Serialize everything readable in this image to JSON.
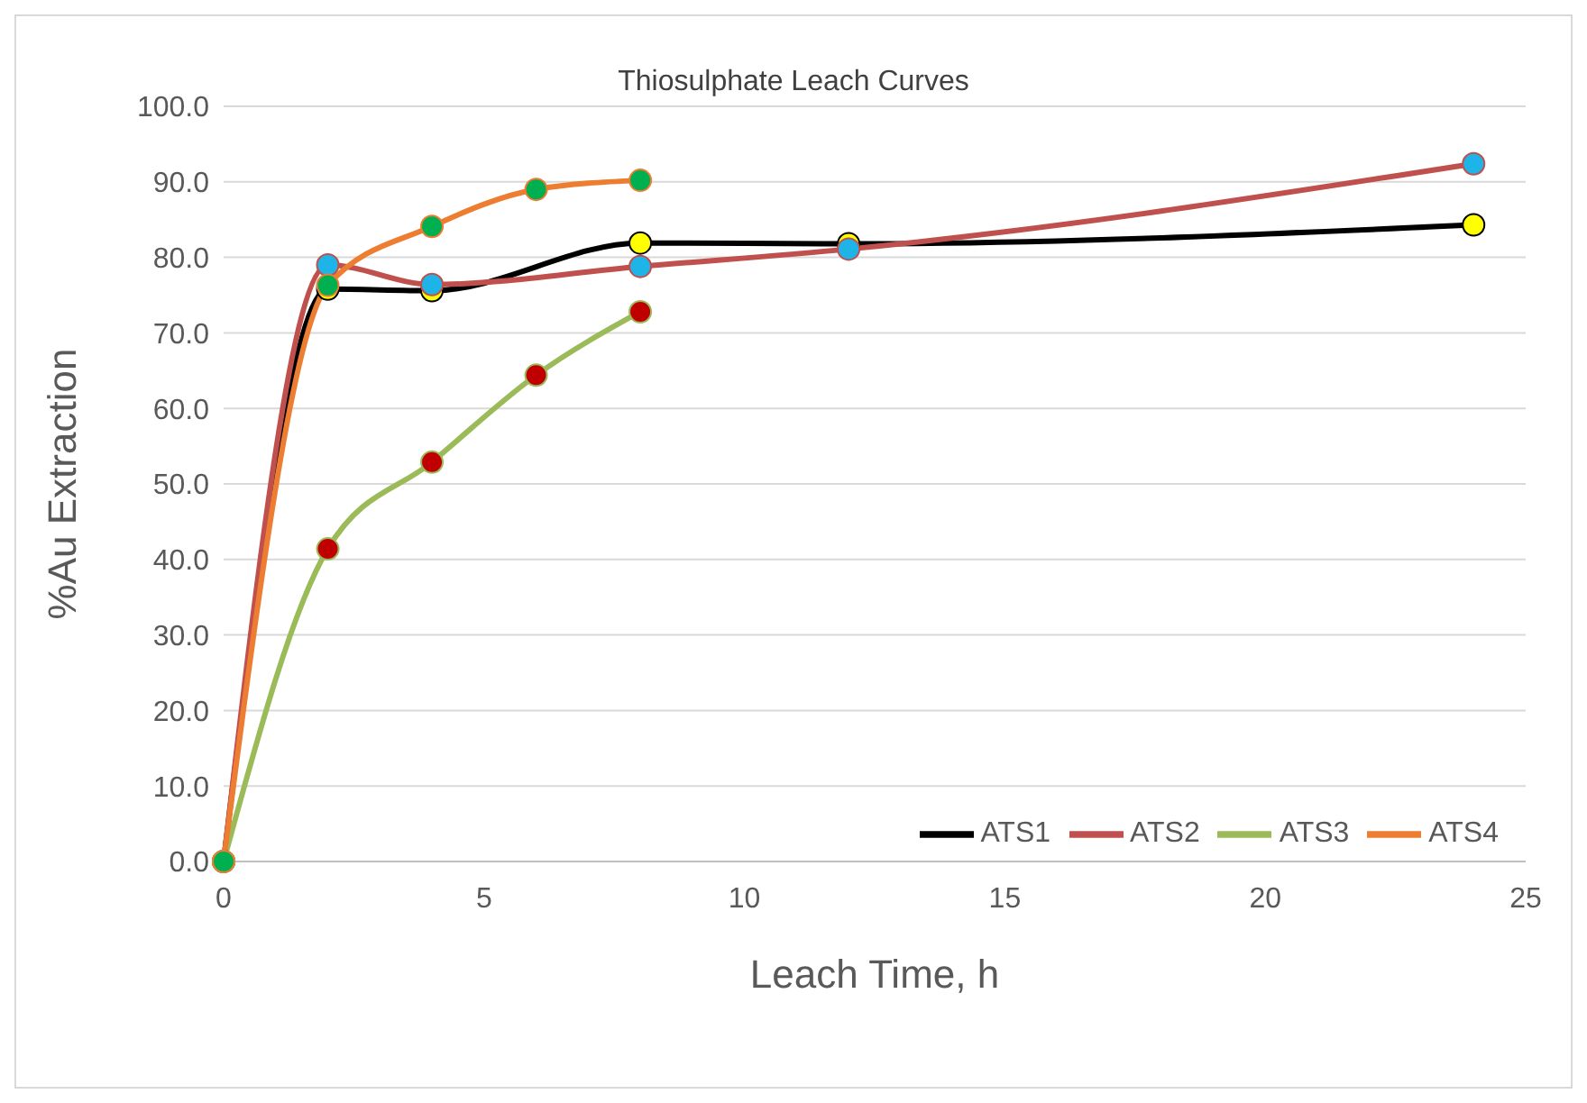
{
  "chart_data": {
    "type": "line",
    "title": "Thiosulphate Leach Curves",
    "xlabel": "Leach Time, h",
    "ylabel": "%Au Extraction",
    "xlim": [
      0,
      25
    ],
    "xticks": [
      0,
      5,
      10,
      15,
      20,
      25
    ],
    "ylim": [
      0,
      100
    ],
    "yticks": [
      {
        "value": 0,
        "label": "0.0"
      },
      {
        "value": 10,
        "label": "10.0"
      },
      {
        "value": 20,
        "label": "20.0"
      },
      {
        "value": 30,
        "label": "30.0"
      },
      {
        "value": 40,
        "label": "40.0"
      },
      {
        "value": 50,
        "label": "50.0"
      },
      {
        "value": 60,
        "label": "60.0"
      },
      {
        "value": 70,
        "label": "70.0"
      },
      {
        "value": 80,
        "label": "80.0"
      },
      {
        "value": 90,
        "label": "90.0"
      },
      {
        "value": 100,
        "label": "100.0"
      }
    ],
    "grid": "y",
    "legend": "bottom right",
    "marker": "circle",
    "line_style": "solid",
    "series": [
      {
        "name": "ATS1",
        "color": "#000000",
        "colors": [
          "#ffff00",
          "#ffff00",
          "#ffff00",
          "#ffff00",
          "#ffff00",
          "#ffff00"
        ],
        "x": [
          0,
          2,
          4,
          8,
          12,
          24
        ],
        "values": [
          0,
          75.8,
          75.6,
          81.9,
          81.8,
          84.3
        ]
      },
      {
        "name": "ATS2",
        "color": "#c0504d",
        "colors": [
          "#1fb4e8",
          "#1fb4e8",
          "#1fb4e8",
          "#1fb4e8",
          "#1fb4e8",
          "#1fb4e8"
        ],
        "x": [
          0,
          2,
          4,
          8,
          12,
          24
        ],
        "values": [
          0,
          79.0,
          76.4,
          78.8,
          81.1,
          92.4
        ]
      },
      {
        "name": "ATS3",
        "color": "#9bbb59",
        "colors": [
          "#c00000",
          "#c00000",
          "#c00000",
          "#c00000",
          "#c00000"
        ],
        "x": [
          0,
          2,
          4,
          6,
          8
        ],
        "values": [
          0,
          41.4,
          52.9,
          64.4,
          72.8
        ]
      },
      {
        "name": "ATS4",
        "color": "#ed7d31",
        "colors": [
          "#00b050",
          "#00b050",
          "#00b050",
          "#00b050",
          "#00b050"
        ],
        "x": [
          0,
          2,
          4,
          6,
          8
        ],
        "values": [
          0,
          76.3,
          84.1,
          89.0,
          90.2
        ]
      }
    ]
  }
}
